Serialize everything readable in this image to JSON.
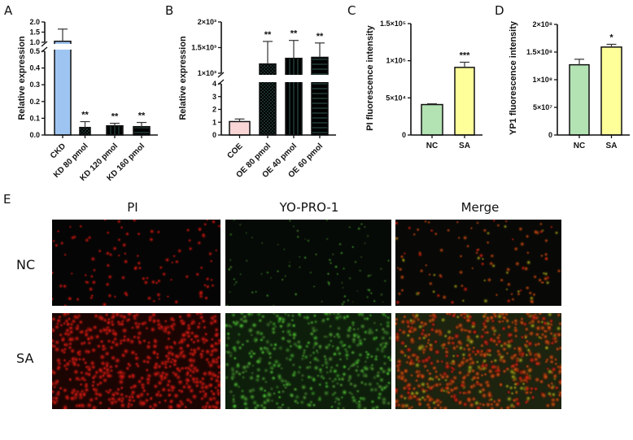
{
  "panel_e": {
    "label": "E",
    "columns": [
      "PI",
      "YO-PRO-1",
      "Merge"
    ],
    "rows": [
      "NC",
      "SA"
    ]
  },
  "chart_data": [
    {
      "panel": "A",
      "type": "bar",
      "ylabel": "Relative expression",
      "categories": [
        "CKD",
        "KD 80 pmol",
        "KD 120 pmol",
        "KD 160 pmol"
      ],
      "values": [
        1.05,
        0.045,
        0.055,
        0.05
      ],
      "errors_upper": [
        1.65,
        0.08,
        0.07,
        0.075
      ],
      "significance": [
        "",
        "**",
        "**",
        "**"
      ],
      "y_axis_break": [
        0.5,
        1.0
      ],
      "ylim": [
        0,
        2.0
      ],
      "ticks": [
        {
          "v": 0,
          "t": "0.0"
        },
        {
          "v": 0.1,
          "t": "0.1"
        },
        {
          "v": 0.2,
          "t": "0.2"
        },
        {
          "v": 0.3,
          "t": "0.3"
        },
        {
          "v": 0.4,
          "t": "0.4"
        },
        {
          "v": 0.5,
          "t": "0.5"
        },
        {
          "v": 1.0,
          "t": "1.0"
        },
        {
          "v": 1.5,
          "t": "1.5"
        },
        {
          "v": 2.0,
          "t": "2.0"
        }
      ],
      "colors": [
        "#9ec5f2"
      ],
      "patterns": [
        "solid",
        "checker",
        "vertical",
        "horizontal"
      ]
    },
    {
      "panel": "B",
      "type": "bar",
      "ylabel": "Relative expression",
      "categories": [
        "COE",
        "OE 80 pmol",
        "OE 40 pmol",
        "OE 60 pmol"
      ],
      "values": [
        1.05,
        1180,
        1290,
        1310
      ],
      "errors_upper": [
        1.25,
        1620,
        1640,
        1590
      ],
      "significance": [
        "",
        "**",
        "**",
        "**"
      ],
      "y_axis_break": [
        4,
        1000
      ],
      "ylim": [
        0,
        2000
      ],
      "ticks": [
        {
          "v": 0,
          "t": "0"
        },
        {
          "v": 1,
          "t": "1"
        },
        {
          "v": 2,
          "t": "2"
        },
        {
          "v": 3,
          "t": "3"
        },
        {
          "v": 4,
          "t": "4"
        },
        {
          "v": 1000,
          "t": "1×10³"
        },
        {
          "v": 1500,
          "t": "1.5×10³"
        },
        {
          "v": 2000,
          "t": "2×10³"
        }
      ],
      "colors": [
        "#f9d5d5"
      ],
      "patterns": [
        "solid",
        "checker",
        "vertical",
        "horizontal"
      ]
    },
    {
      "panel": "C",
      "type": "bar",
      "ylabel": "PI fluorescence intensity",
      "categories": [
        "NC",
        "SA"
      ],
      "values": [
        41000,
        91000
      ],
      "errors_upper": [
        42000,
        98000
      ],
      "significance": [
        "",
        "***"
      ],
      "ylim": [
        0,
        150000
      ],
      "ticks": [
        {
          "v": 0,
          "t": "0"
        },
        {
          "v": 50000,
          "t": "5×10⁴"
        },
        {
          "v": 100000,
          "t": "1×10⁵"
        },
        {
          "v": 150000,
          "t": "1.5×10⁵"
        }
      ],
      "colors": [
        "#b3e2b3",
        "#ffff99"
      ]
    },
    {
      "panel": "D",
      "type": "bar",
      "ylabel": "YP1 fluorescence intensity",
      "categories": [
        "NC",
        "SA"
      ],
      "values": [
        127000000,
        159000000
      ],
      "errors_upper": [
        137000000,
        164000000
      ],
      "significance": [
        "",
        "*"
      ],
      "ylim": [
        0,
        200000000
      ],
      "ticks": [
        {
          "v": 0,
          "t": "0"
        },
        {
          "v": 50000000,
          "t": "5×10⁷"
        },
        {
          "v": 100000000,
          "t": "1×10⁸"
        },
        {
          "v": 150000000,
          "t": "1.5×10⁸"
        },
        {
          "v": 200000000,
          "t": "2×10⁸"
        }
      ],
      "colors": [
        "#b3e2b3",
        "#ffff99"
      ]
    }
  ]
}
